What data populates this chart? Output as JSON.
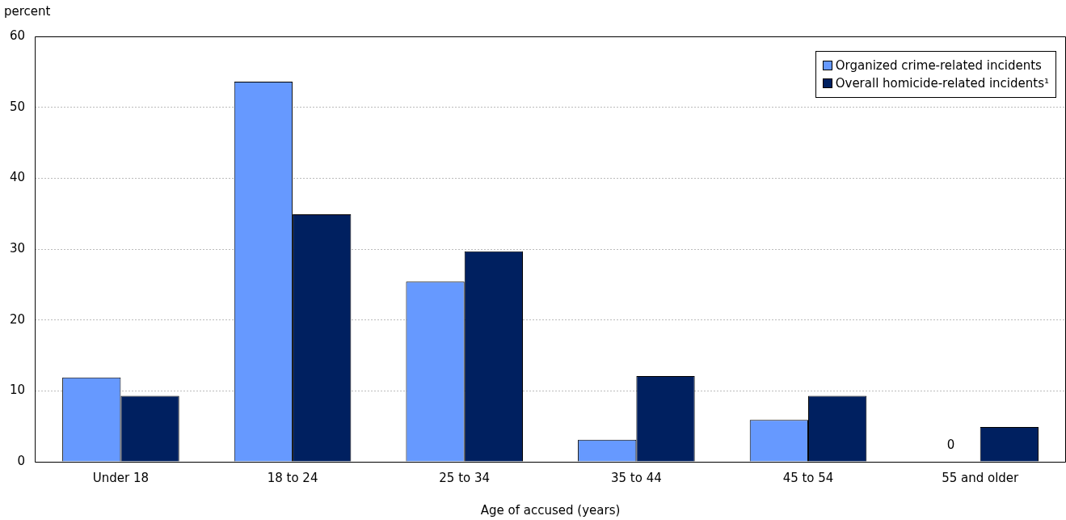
{
  "chart_data": {
    "type": "bar",
    "ylabel": "percent",
    "xlabel": "Age of accused (years)",
    "categories": [
      "Under 18",
      "18 to 24",
      "25 to 34",
      "35 to 44",
      "45 to 54",
      "55 and older"
    ],
    "series": [
      {
        "name": "Organized crime-related incidents",
        "color": "#6699ff",
        "values": [
          11.9,
          53.6,
          25.4,
          3.1,
          5.9,
          0
        ]
      },
      {
        "name": "Overall homicide-related incidents¹",
        "color": "#002060",
        "values": [
          9.3,
          34.9,
          29.7,
          12.1,
          9.3,
          4.9
        ]
      }
    ],
    "annotations": [
      {
        "text": "0",
        "x": "55 and older",
        "y": 0
      }
    ],
    "ylim": [
      0,
      60
    ],
    "yticks": [
      0,
      10,
      20,
      30,
      40,
      50,
      60
    ],
    "grid": "y",
    "legend": "top right"
  }
}
